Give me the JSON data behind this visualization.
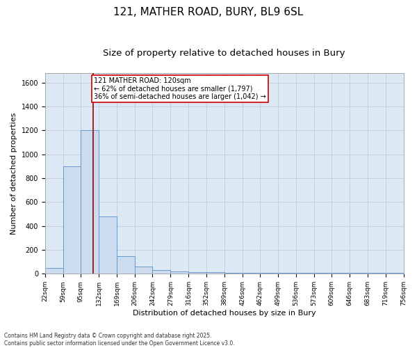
{
  "title_line1": "121, MATHER ROAD, BURY, BL9 6SL",
  "title_line2": "Size of property relative to detached houses in Bury",
  "xlabel": "Distribution of detached houses by size in Bury",
  "ylabel": "Number of detached properties",
  "bin_labels": [
    "22sqm",
    "59sqm",
    "95sqm",
    "132sqm",
    "169sqm",
    "206sqm",
    "242sqm",
    "279sqm",
    "316sqm",
    "352sqm",
    "389sqm",
    "426sqm",
    "462sqm",
    "499sqm",
    "536sqm",
    "573sqm",
    "609sqm",
    "646sqm",
    "683sqm",
    "719sqm",
    "756sqm"
  ],
  "bin_edges": [
    22,
    59,
    95,
    132,
    169,
    206,
    242,
    279,
    316,
    352,
    389,
    426,
    462,
    499,
    536,
    573,
    609,
    646,
    683,
    719,
    756
  ],
  "bar_heights": [
    50,
    900,
    1200,
    480,
    150,
    60,
    30,
    20,
    15,
    15,
    10,
    10,
    10,
    10,
    10,
    5,
    5,
    5,
    5,
    5
  ],
  "bar_color": "#ccdcee",
  "bar_edge_color": "#6699cc",
  "grid_color": "#c5cfe0",
  "background_color": "#dde8f5",
  "property_size": 120,
  "vline_color": "#990000",
  "annotation_text": "121 MATHER ROAD: 120sqm\n← 62% of detached houses are smaller (1,797)\n36% of semi-detached houses are larger (1,042) →",
  "annotation_box_color": "#cc0000",
  "ylim": [
    0,
    1680
  ],
  "yticks": [
    0,
    200,
    400,
    600,
    800,
    1000,
    1200,
    1400,
    1600
  ],
  "footnote": "Contains HM Land Registry data © Crown copyright and database right 2025.\nContains public sector information licensed under the Open Government Licence v3.0.",
  "title_fontsize": 11,
  "subtitle_fontsize": 9.5,
  "label_fontsize": 8,
  "tick_fontsize": 6.5,
  "annot_fontsize": 7
}
